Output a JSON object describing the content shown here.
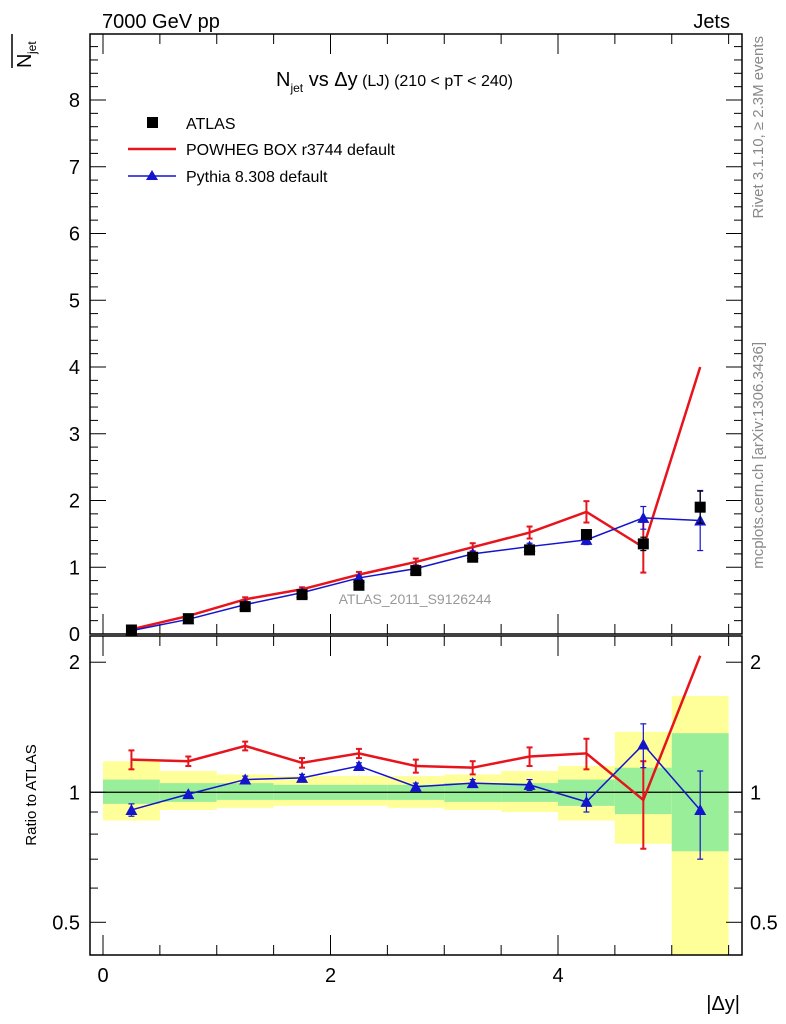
{
  "header": {
    "energy_label": "7000 GeV pp",
    "process_label": "Jets",
    "title_main": "N",
    "title_sub": "jet",
    "title_vs": " vs Δy",
    "title_cut": " (LJ) (210 < pT < 240)",
    "side_top": "Rivet 3.1.10, ≥ 2.3M events",
    "side_bottom": "mcplots.cern.ch [arXiv:1306.3436]",
    "analysis_id": "ATLAS_2011_S9126244",
    "ylabel_main_top": "N",
    "ylabel_main_sub": "jet",
    "ylabel_ratio": "Ratio to ATLAS",
    "xlabel": "|Δy|"
  },
  "colors": {
    "data": "#000000",
    "powheg": "#e8141c",
    "pythia": "#1414cc",
    "band_yellow": "#ffff99",
    "band_green": "#99ee99"
  },
  "chart_data": [
    {
      "type": "scatter",
      "panel": "main",
      "xlim": [
        -0.2,
        5.6
      ],
      "ylim": [
        0,
        9
      ],
      "x_ticks": [
        0,
        2,
        4
      ],
      "y_ticks": [
        0,
        1,
        2,
        3,
        4,
        5,
        6,
        7,
        8
      ],
      "legend_placement": "top-left",
      "bins": [
        [
          0,
          0.5
        ],
        [
          0.5,
          1
        ],
        [
          1,
          1.5
        ],
        [
          1.5,
          2
        ],
        [
          2,
          2.5
        ],
        [
          2.5,
          3
        ],
        [
          3,
          3.5
        ],
        [
          3.5,
          4
        ],
        [
          4,
          4.5
        ],
        [
          4.5,
          5
        ],
        [
          5,
          5.5
        ]
      ],
      "x": [
        0.25,
        0.75,
        1.25,
        1.75,
        2.25,
        2.75,
        3.25,
        3.75,
        4.25,
        4.75,
        5.25
      ],
      "series": [
        {
          "name": "ATLAS",
          "style": "markers",
          "values": [
            0.06,
            0.23,
            0.41,
            0.59,
            0.73,
            0.95,
            1.15,
            1.26,
            1.49,
            1.35,
            1.9
          ],
          "errors": [
            0.01,
            0.02,
            0.02,
            0.03,
            0.03,
            0.04,
            0.04,
            0.05,
            0.07,
            0.1,
            0.24
          ]
        },
        {
          "name": "POWHEG BOX r3744 default",
          "style": "line",
          "values": [
            0.07,
            0.27,
            0.52,
            0.67,
            0.89,
            1.08,
            1.3,
            1.52,
            1.83,
            1.3,
            4.0
          ],
          "errors": [
            0.01,
            0.02,
            0.03,
            0.03,
            0.04,
            0.05,
            0.06,
            0.09,
            0.16,
            0.38,
            0.0
          ]
        },
        {
          "name": "Pythia 8.308 default",
          "style": "line-triangles",
          "values": [
            0.05,
            0.22,
            0.44,
            0.62,
            0.84,
            0.98,
            1.2,
            1.31,
            1.41,
            1.74,
            1.7
          ],
          "errors": [
            0.01,
            0.01,
            0.02,
            0.02,
            0.03,
            0.03,
            0.04,
            0.05,
            0.07,
            0.17,
            0.45
          ]
        }
      ]
    },
    {
      "type": "line",
      "panel": "ratio",
      "scale": "log",
      "xlim": [
        -0.2,
        5.6
      ],
      "ylim": [
        0.42,
        2.3
      ],
      "y_ticks": [
        0.5,
        1,
        2
      ],
      "reference": 1,
      "bins": [
        [
          0,
          0.5
        ],
        [
          0.5,
          1
        ],
        [
          1,
          1.5
        ],
        [
          1.5,
          2
        ],
        [
          2,
          2.5
        ],
        [
          2.5,
          3
        ],
        [
          3,
          3.5
        ],
        [
          3.5,
          4
        ],
        [
          4,
          4.5
        ],
        [
          4.5,
          5
        ],
        [
          5,
          5.5
        ]
      ],
      "x": [
        0.25,
        0.75,
        1.25,
        1.75,
        2.25,
        2.75,
        3.25,
        3.75,
        4.25,
        4.75,
        5.25
      ],
      "band_green": [
        [
          0.94,
          1.07
        ],
        [
          0.95,
          1.05
        ],
        [
          0.96,
          1.05
        ],
        [
          0.96,
          1.04
        ],
        [
          0.96,
          1.04
        ],
        [
          0.96,
          1.04
        ],
        [
          0.95,
          1.05
        ],
        [
          0.95,
          1.05
        ],
        [
          0.93,
          1.07
        ],
        [
          0.89,
          1.14
        ],
        [
          0.73,
          1.37
        ]
      ],
      "band_yellow": [
        [
          0.86,
          1.18
        ],
        [
          0.91,
          1.12
        ],
        [
          0.92,
          1.1
        ],
        [
          0.93,
          1.09
        ],
        [
          0.93,
          1.09
        ],
        [
          0.92,
          1.09
        ],
        [
          0.91,
          1.1
        ],
        [
          0.9,
          1.12
        ],
        [
          0.86,
          1.15
        ],
        [
          0.76,
          1.38
        ],
        [
          0.4,
          1.67
        ]
      ],
      "series": [
        {
          "name": "POWHEG BOX r3744 default",
          "values": [
            1.19,
            1.18,
            1.28,
            1.17,
            1.23,
            1.15,
            1.14,
            1.21,
            1.23,
            0.96,
            2.07
          ],
          "errors": [
            0.06,
            0.03,
            0.03,
            0.03,
            0.03,
            0.04,
            0.04,
            0.06,
            0.1,
            0.22,
            0.0
          ]
        },
        {
          "name": "Pythia 8.308 default",
          "values": [
            0.91,
            0.99,
            1.07,
            1.08,
            1.15,
            1.03,
            1.05,
            1.04,
            0.95,
            1.29,
            0.91
          ],
          "errors": [
            0.03,
            0.01,
            0.02,
            0.02,
            0.02,
            0.02,
            0.02,
            0.03,
            0.05,
            0.15,
            0.21
          ]
        }
      ]
    }
  ]
}
